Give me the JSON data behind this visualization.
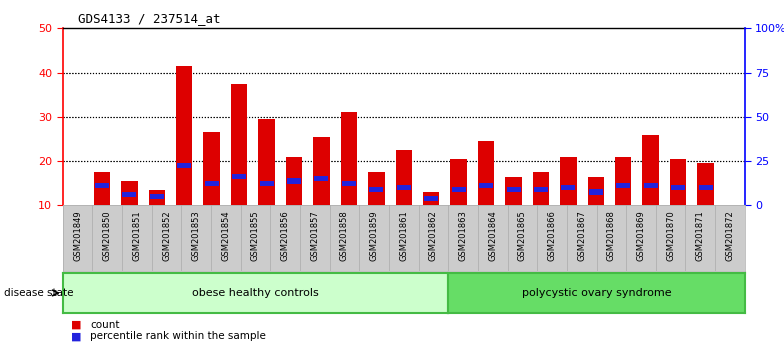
{
  "title": "GDS4133 / 237514_at",
  "samples": [
    "GSM201849",
    "GSM201850",
    "GSM201851",
    "GSM201852",
    "GSM201853",
    "GSM201854",
    "GSM201855",
    "GSM201856",
    "GSM201857",
    "GSM201858",
    "GSM201859",
    "GSM201861",
    "GSM201862",
    "GSM201863",
    "GSM201864",
    "GSM201865",
    "GSM201866",
    "GSM201867",
    "GSM201868",
    "GSM201869",
    "GSM201870",
    "GSM201871",
    "GSM201872"
  ],
  "count_values": [
    17.5,
    15.5,
    13.5,
    41.5,
    26.5,
    37.5,
    29.5,
    21.0,
    25.5,
    31.0,
    17.5,
    22.5,
    13.0,
    20.5,
    24.5,
    16.5,
    17.5,
    21.0,
    16.5,
    21.0,
    26.0,
    20.5,
    19.5
  ],
  "percentile_values": [
    14.5,
    12.5,
    12.0,
    19.0,
    15.0,
    16.5,
    15.0,
    15.5,
    16.0,
    15.0,
    13.5,
    14.0,
    11.5,
    13.5,
    14.5,
    13.5,
    13.5,
    14.0,
    13.0,
    14.5,
    14.5,
    14.0,
    14.0
  ],
  "bar_color": "#dd0000",
  "blue_color": "#2222dd",
  "ymin": 10,
  "ymax": 50,
  "left_yticks": [
    10,
    20,
    30,
    40,
    50
  ],
  "right_ytick_values": [
    0,
    25,
    50,
    75,
    100
  ],
  "right_yticklabels": [
    "0",
    "25",
    "50",
    "75",
    "100%"
  ],
  "grid_values": [
    20,
    30,
    40
  ],
  "group1_label": "obese healthy controls",
  "group1_count": 13,
  "group2_label": "polycystic ovary syndrome",
  "group2_count": 10,
  "group_fill_light": "#ccffcc",
  "group_fill_dark": "#66dd66",
  "group_border_color": "#44bb44",
  "disease_state_label": "disease state",
  "legend_count": "count",
  "legend_percentile": "percentile rank within the sample",
  "xtick_bg_color": "#cccccc",
  "xtick_border_color": "#aaaaaa"
}
